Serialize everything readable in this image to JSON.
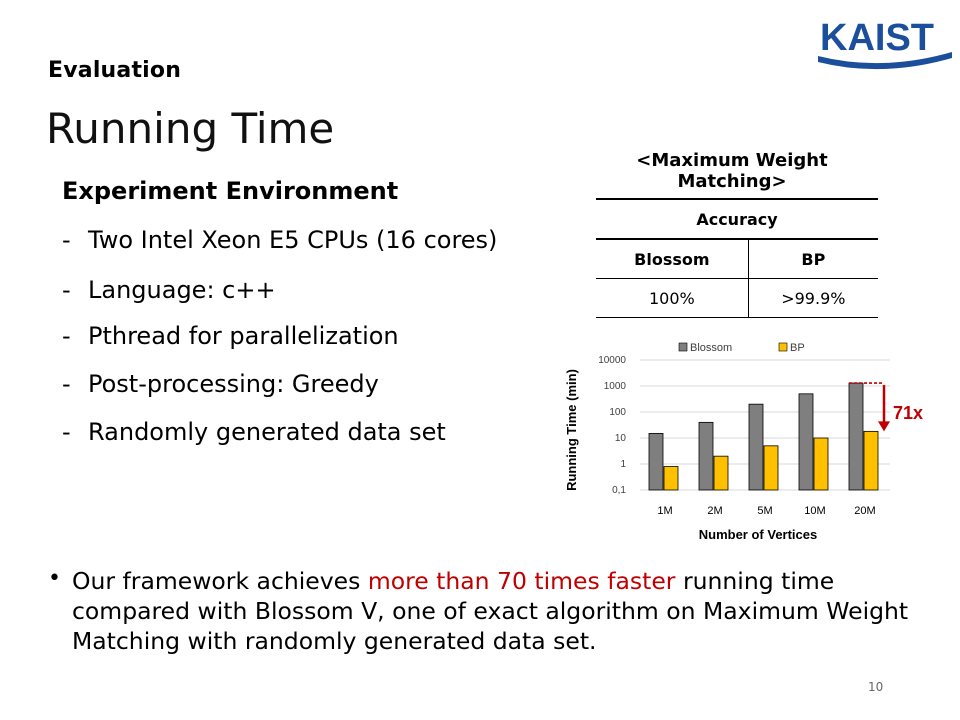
{
  "logo": {
    "text": "KAIST",
    "color": "#1b4f9c"
  },
  "section": "Evaluation",
  "title": "Running Time",
  "environment": {
    "heading": "Experiment Environment",
    "items": [
      "Two Intel Xeon E5 CPUs (16 cores)",
      "Language: c++",
      "Pthread for parallelization",
      "Post-processing: Greedy",
      "Randomly generated data set"
    ]
  },
  "accuracy_table": {
    "caption": "<Maximum Weight Matching>",
    "header": "Accuracy",
    "columns": [
      "Blossom",
      "BP"
    ],
    "values": [
      "100%",
      ">99.9%"
    ]
  },
  "chart_data": {
    "type": "bar",
    "ylabel": "Running Time (min)",
    "xlabel": "Number of Vertices",
    "categories": [
      "1M",
      "2M",
      "5M",
      "10M",
      "20M"
    ],
    "y_scale": "log",
    "ylim": [
      0.1,
      10000
    ],
    "y_ticks": [
      "0,1",
      "1",
      "10",
      "100",
      "1000",
      "10000"
    ],
    "series": [
      {
        "name": "Blossom",
        "color": "#7f7f7f",
        "values": [
          15,
          40,
          200,
          500,
          1300
        ]
      },
      {
        "name": "BP",
        "color": "#ffc000",
        "values": [
          0.8,
          2,
          5,
          10,
          18
        ]
      }
    ],
    "legend": "top",
    "annotation": {
      "text": "71x",
      "color": "#c00000"
    }
  },
  "bullet": {
    "before": "Our framework achieves ",
    "highlight": "more than 70 times faster",
    "after": " running time compared with Blossom V, one of exact algorithm on Maximum Weight Matching with randomly generated data set.",
    "highlight_color": "#c00000"
  },
  "page_number": "10"
}
